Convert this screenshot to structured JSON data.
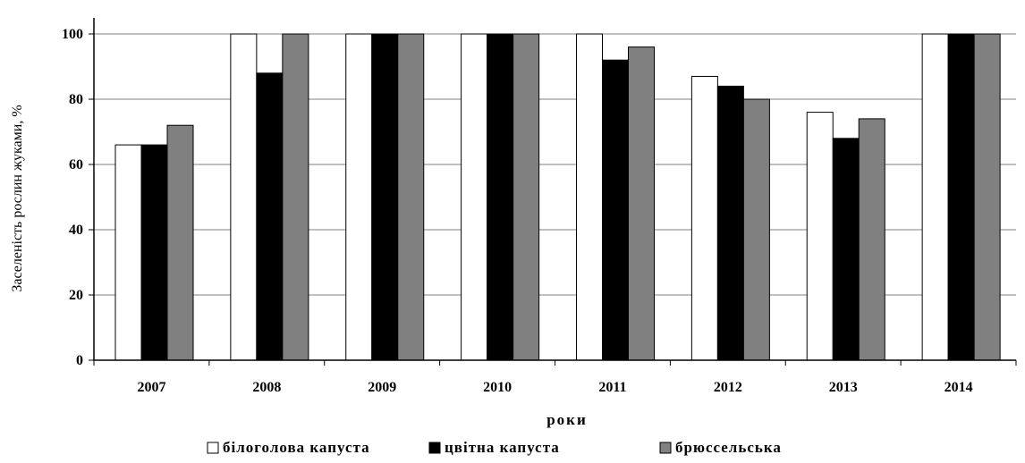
{
  "chart_data": {
    "type": "bar",
    "categories": [
      "2007",
      "2008",
      "2009",
      "2010",
      "2011",
      "2012",
      "2013",
      "2014"
    ],
    "series": [
      {
        "name": "білоголова капуста",
        "color": "#ffffff",
        "values": [
          66,
          100,
          100,
          100,
          100,
          87,
          76,
          100
        ]
      },
      {
        "name": "цвітна капуста",
        "color": "#000000",
        "values": [
          66,
          88,
          100,
          100,
          92,
          84,
          68,
          100
        ]
      },
      {
        "name": "брюссельська",
        "color": "#808080",
        "values": [
          72,
          100,
          100,
          100,
          96,
          80,
          74,
          100
        ]
      }
    ],
    "title": "",
    "xlabel": "роки",
    "ylabel": "Заселеність рослин жуками, %",
    "ylim": [
      0,
      100
    ],
    "yticks": [
      0,
      20,
      40,
      60,
      80,
      100
    ],
    "grid": true,
    "legend_position": "bottom"
  }
}
